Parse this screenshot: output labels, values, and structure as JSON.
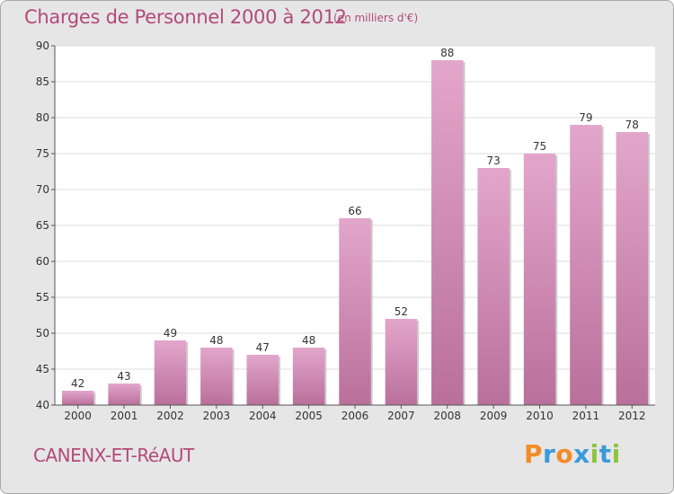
{
  "header": {
    "title": "Charges de Personnel 2000 à 2012",
    "subtitle": "(en milliers d'€)"
  },
  "footer": {
    "commune": "CANENX-ET-RéAUT",
    "brand_letters": [
      "P",
      "r",
      "o",
      "x",
      "i",
      "t",
      "i"
    ],
    "brand_colors": [
      "#f28c28",
      "#3a9ad9",
      "#f28c28",
      "#3a9ad9",
      "#8cc63f",
      "#3a9ad9",
      "#8cc63f"
    ]
  },
  "colors": {
    "bar_top": "#e3a6cb",
    "bar_bottom": "#b9709b",
    "plot_background": "#ffffff",
    "grid": "#dddddd",
    "text_accent": "#b24a7a"
  },
  "chart_data": {
    "type": "bar",
    "title": "Charges de Personnel 2000 à 2012",
    "subtitle": "(en milliers d'€)",
    "categories": [
      "2000",
      "2001",
      "2002",
      "2003",
      "2004",
      "2005",
      "2006",
      "2007",
      "2008",
      "2009",
      "2010",
      "2011",
      "2012"
    ],
    "values": [
      42,
      43,
      49,
      48,
      47,
      48,
      66,
      52,
      88,
      73,
      75,
      79,
      78
    ],
    "ylim": [
      40,
      90
    ],
    "yticks": [
      40,
      45,
      50,
      55,
      60,
      65,
      70,
      75,
      80,
      85,
      90
    ],
    "grid": true,
    "legend": "none"
  }
}
